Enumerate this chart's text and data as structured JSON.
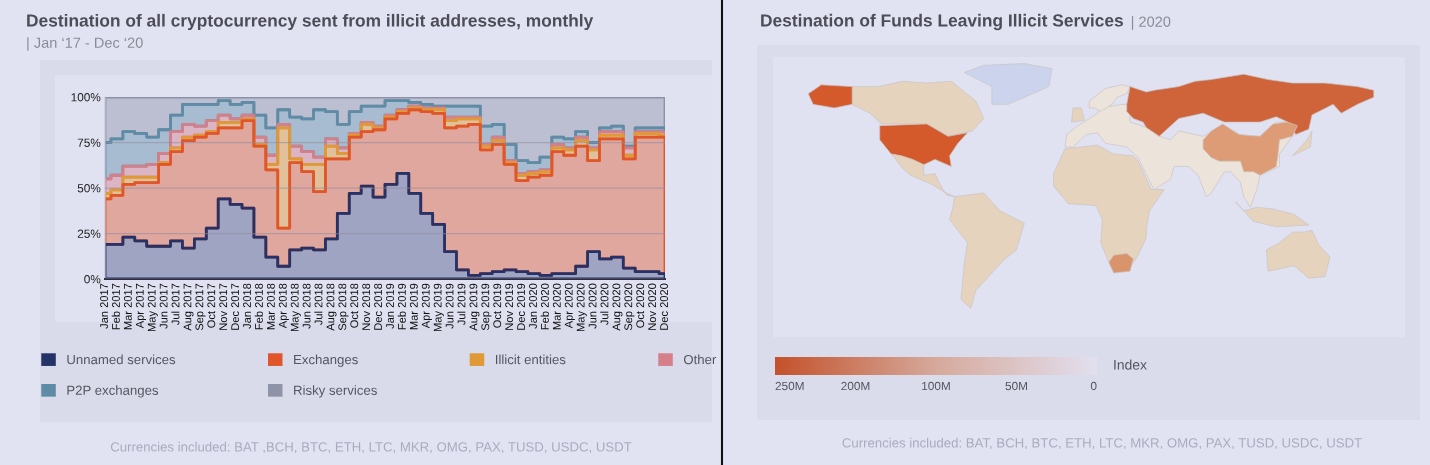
{
  "chart_data": [
    {
      "type": "area",
      "stacked": true,
      "title": "Destination of all cryptocurrency sent from illicit addresses, monthly",
      "subtitle": "| Jan ‘17 - Dec ‘20",
      "categories": [
        "Jan 2017",
        "Feb 2017",
        "Mar 2017",
        "Apr 2017",
        "May 2017",
        "Jun 2017",
        "Jul 2017",
        "Aug 2017",
        "Sep 2017",
        "Oct 2017",
        "Nov 2017",
        "Dec 2017",
        "Jan 2018",
        "Feb 2018",
        "Mar 2018",
        "Apr 2018",
        "May 2018",
        "Jun 2018",
        "Jul 2018",
        "Aug 2018",
        "Sep 2018",
        "Oct 2018",
        "Nov 2018",
        "Dec 2018",
        "Jan 2019",
        "Feb 2019",
        "Mar 2019",
        "Apr 2019",
        "May 2019",
        "Jun 2019",
        "Jul 2019",
        "Aug 2019",
        "Sep 2019",
        "Oct 2019",
        "Nov 2019",
        "Dec 2019",
        "Jan 2020",
        "Feb 2020",
        "Mar 2020",
        "Apr 2020",
        "May 2020",
        "Jun 2020",
        "Jul 2020",
        "Aug 2020",
        "Sep 2020",
        "Oct 2020",
        "Nov 2020",
        "Dec 2020"
      ],
      "series": [
        {
          "name": "Unnamed services",
          "color": "#253268",
          "values": [
            19,
            19,
            23,
            21,
            18,
            18,
            21,
            17,
            22,
            28,
            44,
            41,
            39,
            23,
            12,
            7,
            16,
            17,
            16,
            22,
            36,
            47,
            51,
            45,
            52,
            58,
            47,
            36,
            30,
            15,
            5,
            2,
            3,
            4,
            5,
            4,
            3,
            2,
            3,
            3,
            7,
            15,
            11,
            12,
            6,
            4,
            4,
            3
          ]
        },
        {
          "name": "Exchanges",
          "color": "#e0552a",
          "values": [
            25,
            27,
            29,
            32,
            35,
            45,
            49,
            59,
            56,
            52,
            39,
            42,
            48,
            50,
            48,
            21,
            48,
            42,
            32,
            44,
            30,
            31,
            30,
            37,
            36,
            33,
            46,
            56,
            61,
            68,
            79,
            83,
            68,
            70,
            58,
            50,
            53,
            55,
            67,
            65,
            66,
            50,
            66,
            65,
            60,
            74,
            74,
            75
          ]
        },
        {
          "name": "Illicit entities",
          "color": "#e09a35",
          "values": [
            3,
            3,
            4,
            3,
            3,
            1,
            2,
            2,
            1,
            1,
            3,
            3,
            1,
            1,
            3,
            55,
            2,
            4,
            15,
            7,
            3,
            1,
            4,
            1,
            1,
            1,
            1,
            1,
            2,
            4,
            4,
            3,
            2,
            2,
            1,
            3,
            2,
            2,
            2,
            3,
            3,
            6,
            2,
            2,
            2,
            2,
            2,
            1
          ]
        },
        {
          "name": "Other",
          "color": "#d47f8a",
          "values": [
            8,
            8,
            6,
            6,
            7,
            5,
            9,
            7,
            5,
            6,
            4,
            2,
            2,
            4,
            5,
            2,
            7,
            7,
            4,
            4,
            3,
            1,
            1,
            1,
            1,
            1,
            1,
            1,
            1,
            2,
            1,
            1,
            1,
            2,
            1,
            1,
            1,
            1,
            2,
            1,
            2,
            1,
            2,
            2,
            4,
            1,
            1,
            2
          ]
        },
        {
          "name": "P2P exchanges",
          "color": "#5e8ba5",
          "values": [
            20,
            20,
            19,
            18,
            15,
            13,
            9,
            11,
            12,
            9,
            8,
            8,
            7,
            12,
            15,
            8,
            16,
            18,
            26,
            15,
            13,
            12,
            9,
            11,
            8,
            5,
            2,
            2,
            1,
            6,
            6,
            6,
            10,
            7,
            9,
            7,
            5,
            7,
            4,
            5,
            3,
            3,
            2,
            3,
            1,
            2,
            2,
            2
          ]
        },
        {
          "name": "Risky services",
          "color": "#8e93a8",
          "values": [
            25,
            23,
            19,
            20,
            22,
            18,
            10,
            4,
            4,
            4,
            2,
            4,
            3,
            10,
            17,
            7,
            11,
            12,
            7,
            8,
            15,
            8,
            5,
            5,
            2,
            2,
            3,
            4,
            5,
            5,
            5,
            5,
            16,
            15,
            26,
            35,
            36,
            33,
            22,
            23,
            19,
            25,
            17,
            16,
            27,
            17,
            17,
            17
          ]
        }
      ],
      "ylim": [
        0,
        100
      ],
      "yticks": [
        {
          "value": 0,
          "label": "0%"
        },
        {
          "value": 25,
          "label": "25%"
        },
        {
          "value": 50,
          "label": "50%"
        },
        {
          "value": 75,
          "label": "75%"
        },
        {
          "value": 100,
          "label": "100%"
        }
      ],
      "grid": "y",
      "legend": "bottom",
      "annotations": [
        "Currencies included: BAT ,BCH, BTC, ETH, LTC, MKR, OMG, PAX, TUSD, USDC, USDT"
      ]
    },
    {
      "type": "other",
      "title": "Destination of Funds Leaving Illicit Services",
      "subtitle": "| 2020",
      "clabel": "Index",
      "annotations": [
        "250M",
        "200M",
        "100M",
        "50M",
        "0",
        "Currencies included: BAT, BCH, BTC, ETH, LTC, MKR, OMG, PAX, TUSD, USDC, USDT"
      ]
    }
  ]
}
